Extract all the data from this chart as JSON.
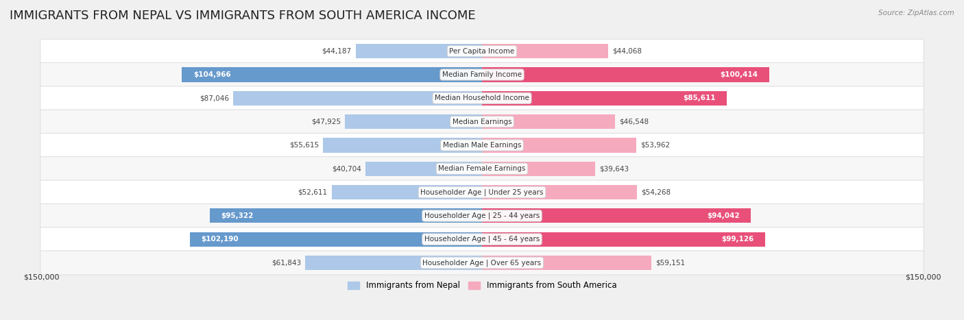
{
  "title": "IMMIGRANTS FROM NEPAL VS IMMIGRANTS FROM SOUTH AMERICA INCOME",
  "source": "Source: ZipAtlas.com",
  "categories": [
    "Per Capita Income",
    "Median Family Income",
    "Median Household Income",
    "Median Earnings",
    "Median Male Earnings",
    "Median Female Earnings",
    "Householder Age | Under 25 years",
    "Householder Age | 25 - 44 years",
    "Householder Age | 45 - 64 years",
    "Householder Age | Over 65 years"
  ],
  "nepal_values": [
    44187,
    104966,
    87046,
    47925,
    55615,
    40704,
    52611,
    95322,
    102190,
    61843
  ],
  "south_america_values": [
    44068,
    100414,
    85611,
    46548,
    53962,
    39643,
    54268,
    94042,
    99126,
    59151
  ],
  "nepal_color_normal": "#adc8e8",
  "nepal_color_highlight": "#6699cc",
  "south_america_color_normal": "#f5aabe",
  "south_america_color_highlight": "#e8507a",
  "max_value": 150000,
  "bar_height": 0.62,
  "background_color": "#f0f0f0",
  "nepal_label": "Immigrants from Nepal",
  "south_america_label": "Immigrants from South America",
  "xlabel_left": "$150,000",
  "xlabel_right": "$150,000",
  "title_fontsize": 13,
  "label_fontsize": 7.5,
  "value_fontsize": 7.5,
  "nepal_highlight_indices": [
    1,
    7,
    8
  ],
  "south_america_highlight_indices": [
    1,
    2,
    7,
    8
  ]
}
